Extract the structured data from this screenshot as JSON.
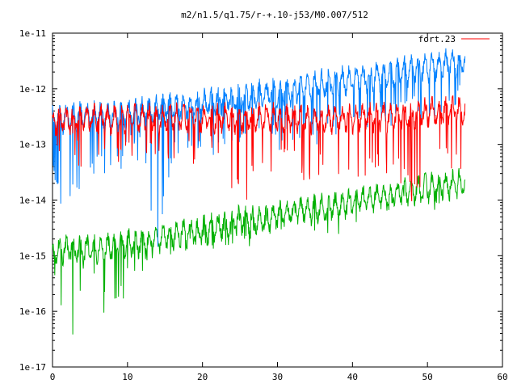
{
  "chart_data": {
    "type": "line",
    "title": "m2/n1.5/q1.75/r-+.10-j53/M0.007/512",
    "xlabel": "",
    "ylabel": "",
    "x_range": [
      0,
      60
    ],
    "y_range": [
      1e-17,
      1e-11
    ],
    "y_scale": "log",
    "x_ticks": [
      0,
      10,
      20,
      30,
      40,
      50,
      60
    ],
    "x_tick_labels": [
      "0",
      "10",
      "20",
      "30",
      "40",
      "50",
      "60"
    ],
    "y_ticks": [
      1e-17,
      1e-16,
      1e-15,
      1e-14,
      1e-13,
      1e-12,
      1e-11
    ],
    "y_tick_labels": [
      "1e-17",
      "1e-16",
      "1e-15",
      "1e-14",
      "1e-13",
      "1e-12",
      "1e-11"
    ],
    "grid": false,
    "legend": {
      "position": "top-right",
      "entries": [
        {
          "label": "fort.23",
          "color": "#ff0000"
        }
      ]
    },
    "series": [
      {
        "name": "fort.23",
        "color": "#ff0000",
        "x": [
          0,
          2,
          4,
          6,
          8,
          10,
          12,
          14,
          16,
          18,
          20,
          22,
          24,
          26,
          28,
          30,
          32,
          34,
          36,
          38,
          40,
          42,
          44,
          46,
          48,
          50,
          52,
          54,
          55
        ],
        "y": [
          4e-13,
          4e-13,
          4.2e-13,
          4.5e-13,
          4e-13,
          4.5e-13,
          4.5e-13,
          4.2e-13,
          4.5e-13,
          4.5e-13,
          4.5e-13,
          4.5e-13,
          4.2e-13,
          4.2e-13,
          4.5e-13,
          4.5e-13,
          4.5e-13,
          4.2e-13,
          4.2e-13,
          4.5e-13,
          4.5e-13,
          5e-13,
          4.5e-13,
          5e-13,
          5e-13,
          5.5e-13,
          6e-13,
          6.5e-13,
          6.5e-13
        ],
        "minima": [
          1e-13,
          1.5e-13,
          6e-14,
          8e-14,
          5e-14,
          1e-13,
          1.2e-13,
          6e-14,
          5e-14,
          8e-14,
          1e-13,
          1.2e-13,
          1.5e-14,
          2e-14,
          6e-14,
          6e-14,
          8e-14,
          2e-14,
          7e-14,
          4e-14,
          2e-14,
          5e-14,
          6e-14,
          4e-14,
          1.5e-14,
          5e-14,
          8e-14,
          5e-14,
          5e-14
        ]
      },
      {
        "name": "",
        "color": "#0080ff",
        "x": [
          0,
          2,
          4,
          6,
          8,
          10,
          12,
          14,
          16,
          18,
          20,
          22,
          24,
          26,
          28,
          30,
          32,
          34,
          36,
          38,
          40,
          42,
          44,
          46,
          48,
          50,
          52,
          54,
          55
        ],
        "y": [
          4e-13,
          4.5e-13,
          5e-13,
          5e-13,
          5e-13,
          5.5e-13,
          6e-13,
          6.5e-13,
          7e-13,
          7.5e-13,
          8e-13,
          9e-13,
          1e-12,
          1.1e-12,
          1.2e-12,
          1.3e-12,
          1.4e-12,
          1.6e-12,
          1.8e-12,
          2e-12,
          2.2e-12,
          2.4e-12,
          2.6e-12,
          2.9e-12,
          3.2e-12,
          3.5e-12,
          3.9e-12,
          4.4e-12,
          4.8e-12
        ],
        "minima": [
          3e-14,
          1e-14,
          2e-14,
          5e-14,
          3e-14,
          1e-13,
          1e-13,
          2e-15,
          8e-14,
          1e-13,
          1.2e-13,
          1e-13,
          1e-13,
          1.2e-13,
          1.5e-13,
          1.5e-13,
          2e-13,
          2e-13,
          2e-13,
          2.5e-13,
          3e-13,
          3e-13,
          4e-13,
          4e-13,
          5e-13,
          5e-13,
          6e-13,
          7e-13,
          1.2e-12
        ]
      },
      {
        "name": "",
        "color": "#00b000",
        "x": [
          0,
          2,
          4,
          6,
          8,
          10,
          12,
          14,
          16,
          18,
          20,
          22,
          24,
          26,
          28,
          30,
          32,
          34,
          36,
          38,
          40,
          42,
          44,
          46,
          48,
          50,
          52,
          54,
          55
        ],
        "y": [
          1.5e-15,
          2e-15,
          2e-15,
          2e-15,
          2.2e-15,
          2.5e-15,
          2.5e-15,
          3e-15,
          3.5e-15,
          4e-15,
          4.5e-15,
          5e-15,
          6e-15,
          6.5e-15,
          7e-15,
          8e-15,
          9e-15,
          1e-14,
          1.1e-14,
          1.2e-14,
          1.4e-14,
          1.6e-14,
          1.8e-14,
          2e-14,
          2.2e-14,
          2.5e-14,
          2.7e-14,
          3e-14,
          3e-14
        ],
        "minima": [
          5e-16,
          2.5e-17,
          5e-16,
          3e-16,
          1e-16,
          5e-16,
          6e-16,
          1e-15,
          1.5e-15,
          1.5e-15,
          2e-15,
          2e-15,
          3e-15,
          1.5e-15,
          3e-15,
          3e-15,
          4e-15,
          3e-15,
          5e-15,
          4e-15,
          5e-15,
          5e-15,
          1e-14,
          1e-14,
          1.2e-14,
          1.2e-14,
          1.5e-14,
          1.8e-14,
          2e-14
        ]
      }
    ]
  }
}
